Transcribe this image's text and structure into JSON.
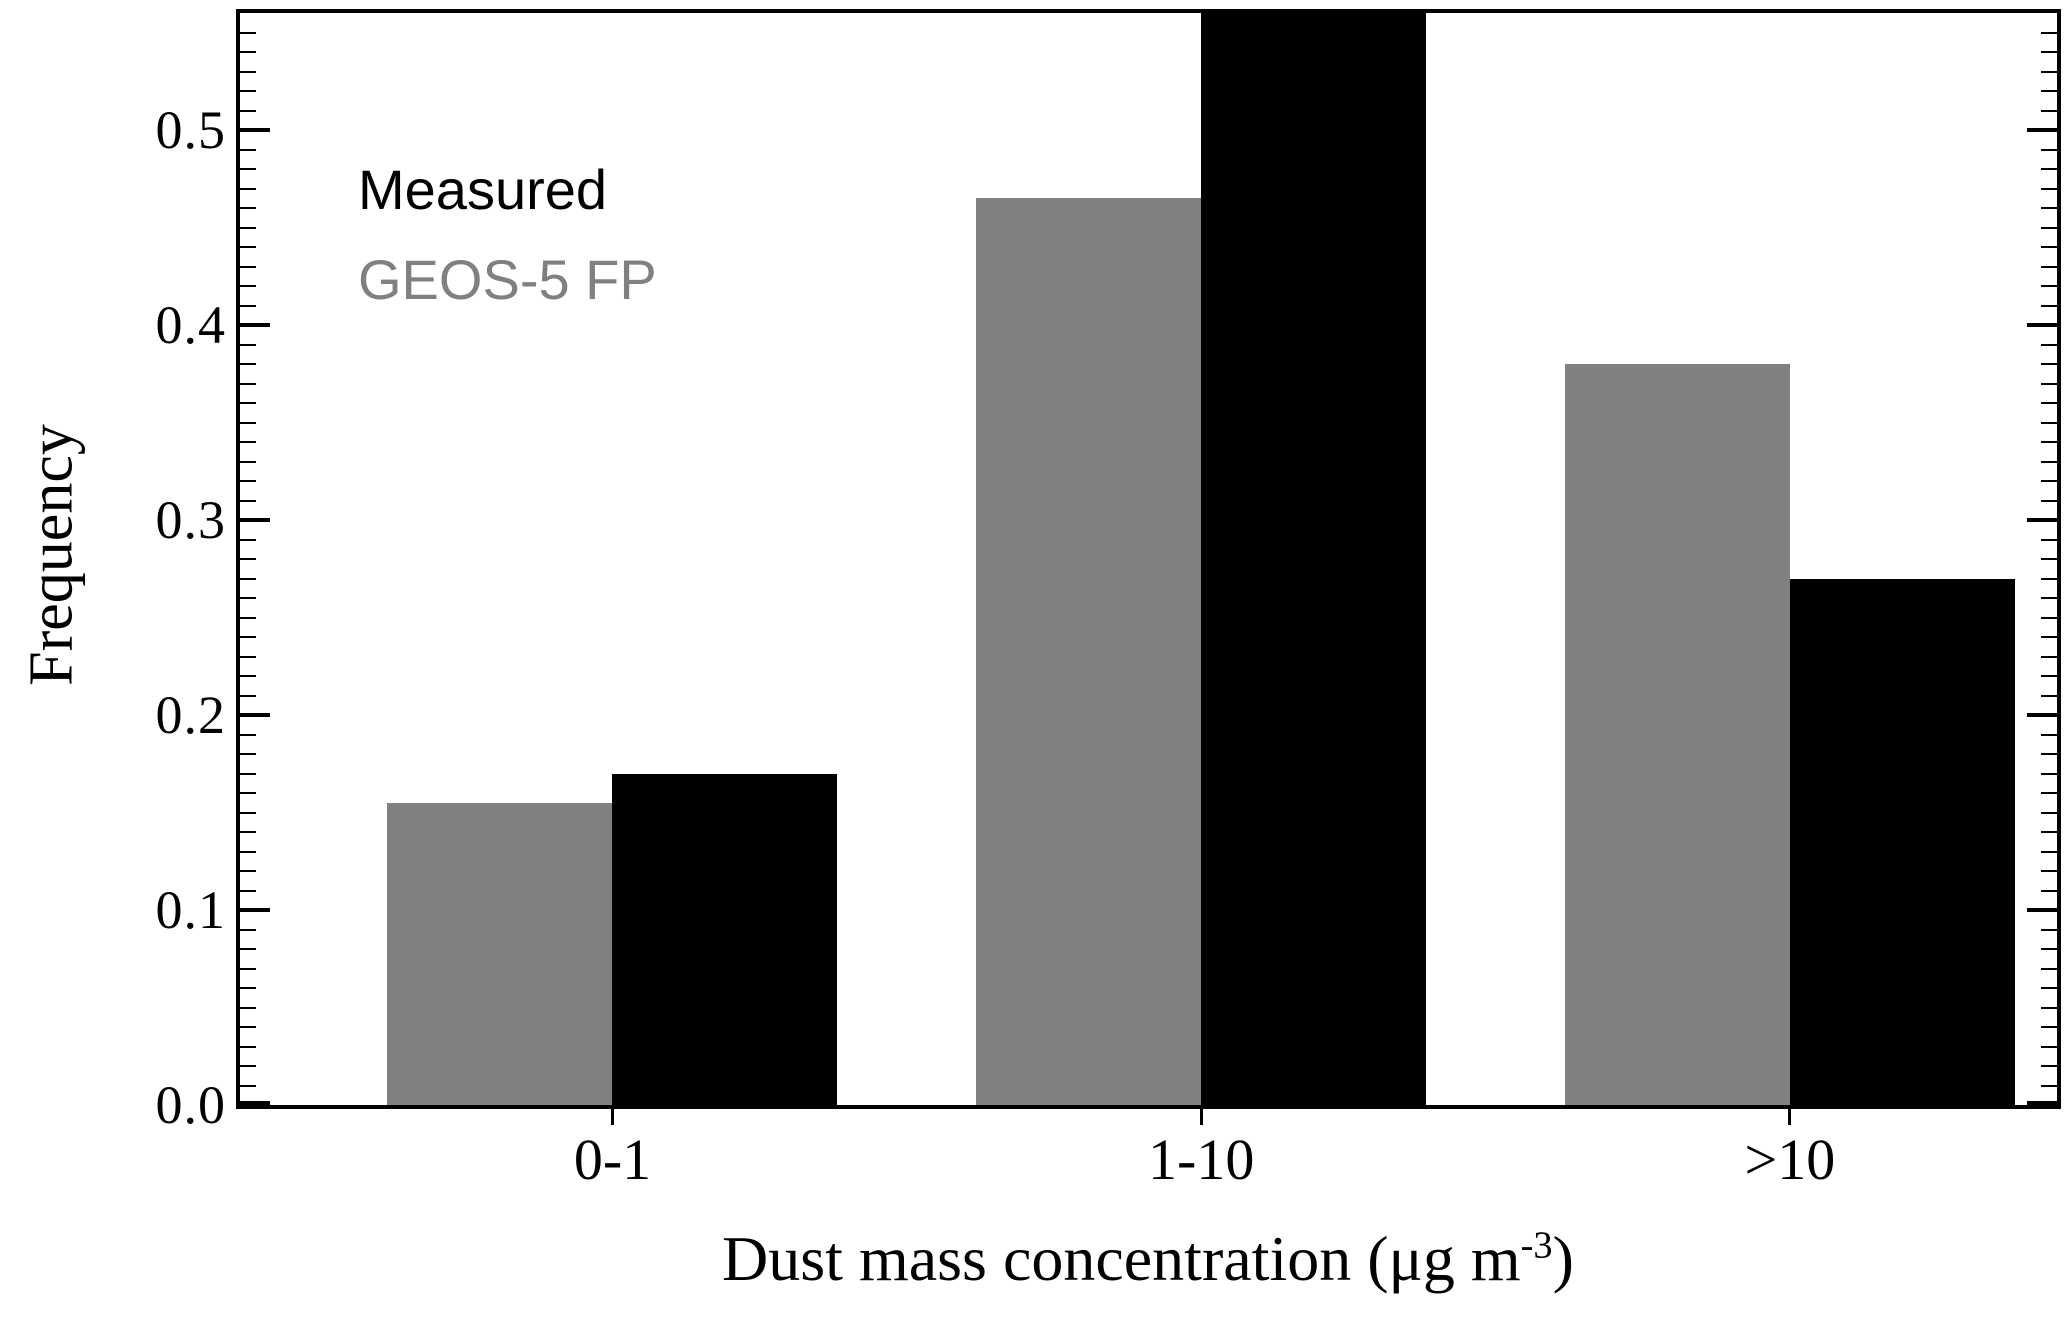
{
  "figure": {
    "background_color": "#ffffff",
    "frame_color": "#000000"
  },
  "chart_data": {
    "type": "bar",
    "title": "",
    "xlabel": "Dust mass concentration (μg m⁻³)",
    "xlabel_parts": {
      "main": "Dust mass concentration (",
      "unit": "μg m",
      "sup": "-3",
      "close": ")"
    },
    "ylabel": "Frequency",
    "categories": [
      "0-1",
      "1-10",
      ">10"
    ],
    "series": [
      {
        "name": "GEOS-5 FP",
        "color": "#808080",
        "values": [
          0.155,
          0.465,
          0.38
        ]
      },
      {
        "name": "Measured",
        "color": "#000000",
        "values": [
          0.17,
          0.56,
          0.27
        ],
        "clipped_at_top": [
          false,
          true,
          false
        ]
      }
    ],
    "ylim": [
      0,
      0.56
    ],
    "y_major_ticks": [
      0.0,
      0.1,
      0.2,
      0.3,
      0.4,
      0.5
    ],
    "y_tick_labels": [
      "0.0",
      "0.1",
      "0.2",
      "0.3",
      "0.4",
      "0.5"
    ],
    "y_minor_step": 0.01,
    "grid": false,
    "legend": {
      "position": "top-left-inside",
      "entries": [
        {
          "label": "Measured",
          "color": "#000000"
        },
        {
          "label": "GEOS-5 FP",
          "color": "#808080"
        }
      ]
    }
  }
}
